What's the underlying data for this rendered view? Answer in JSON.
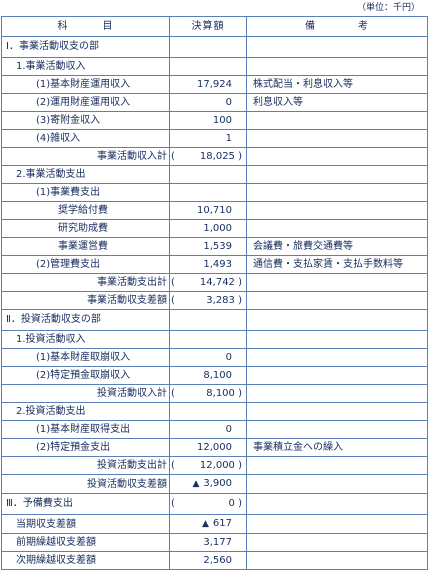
{
  "unit": "（単位：千円）",
  "headers": {
    "subject_a": "科",
    "subject_b": "目",
    "amount": "決算額",
    "note_a": "備",
    "note_b": "考"
  },
  "rows": {
    "s1": {
      "label": "Ⅰ．事業活動収支の部"
    },
    "r1": {
      "label": "1.事業活動収入"
    },
    "r2": {
      "label": "(1)基本財産運用収入",
      "amount": "17,924",
      "note": "株式配当・利息収入等"
    },
    "r3": {
      "label": "(2)運用財産運用収入",
      "amount": "0",
      "note": "利息収入等"
    },
    "r4": {
      "label": "(3)寄附金収入",
      "amount": "100"
    },
    "r5": {
      "label": "(4)雑収入",
      "amount": "1"
    },
    "r6": {
      "label": "事業活動収入計",
      "open": "(",
      "amount": "18,025 )"
    },
    "r7": {
      "label": "2.事業活動支出"
    },
    "r8": {
      "label": "(1)事業費支出"
    },
    "r9": {
      "label": "奨学給付費",
      "amount": "10,710"
    },
    "r10": {
      "label": "研究助成費",
      "amount": "1,000"
    },
    "r11": {
      "label": "事業運営費",
      "amount": "1,539",
      "note": "会議費・旅費交通費等"
    },
    "r12": {
      "label": "(2)管理費支出",
      "amount": "1,493",
      "note": "通信費・支払家賃・支払手数料等"
    },
    "r13": {
      "label": "事業活動支出計",
      "open": "(",
      "amount": "14,742 )"
    },
    "r14": {
      "label": "事業活動収支差額",
      "open": "(",
      "amount": "3,283 )"
    },
    "s2": {
      "label": "Ⅱ．投資活動収支の部"
    },
    "r15": {
      "label": "1.投資活動収入"
    },
    "r16": {
      "label": "(1)基本財産取崩収入",
      "amount": "0"
    },
    "r17": {
      "label": "(2)特定預金取崩収入",
      "amount": "8,100"
    },
    "r18": {
      "label": "投資活動収入計",
      "open": "(",
      "amount": "8,100 )"
    },
    "r19": {
      "label": "2.投資活動支出"
    },
    "r20": {
      "label": "(1)基本財産取得支出",
      "amount": "0"
    },
    "r21": {
      "label": "(2)特定預金支出",
      "amount": "12,000",
      "note": "事業積立金への繰入"
    },
    "r22": {
      "label": "投資活動支出計",
      "open": "(",
      "amount": "12,000 )"
    },
    "r23": {
      "label": "投資活動収支差額",
      "mark": "▲",
      "amount": "3,900"
    },
    "s3": {
      "label": "Ⅲ．予備費支出",
      "open": "(",
      "amount": "0 )"
    },
    "r24": {
      "label": "当期収支差額",
      "mark": "▲",
      "amount": "617"
    },
    "r25": {
      "label": "前期繰越収支差額",
      "amount": "3,177"
    },
    "r26": {
      "label": "次期繰越収支差額",
      "amount": "2,560"
    }
  }
}
